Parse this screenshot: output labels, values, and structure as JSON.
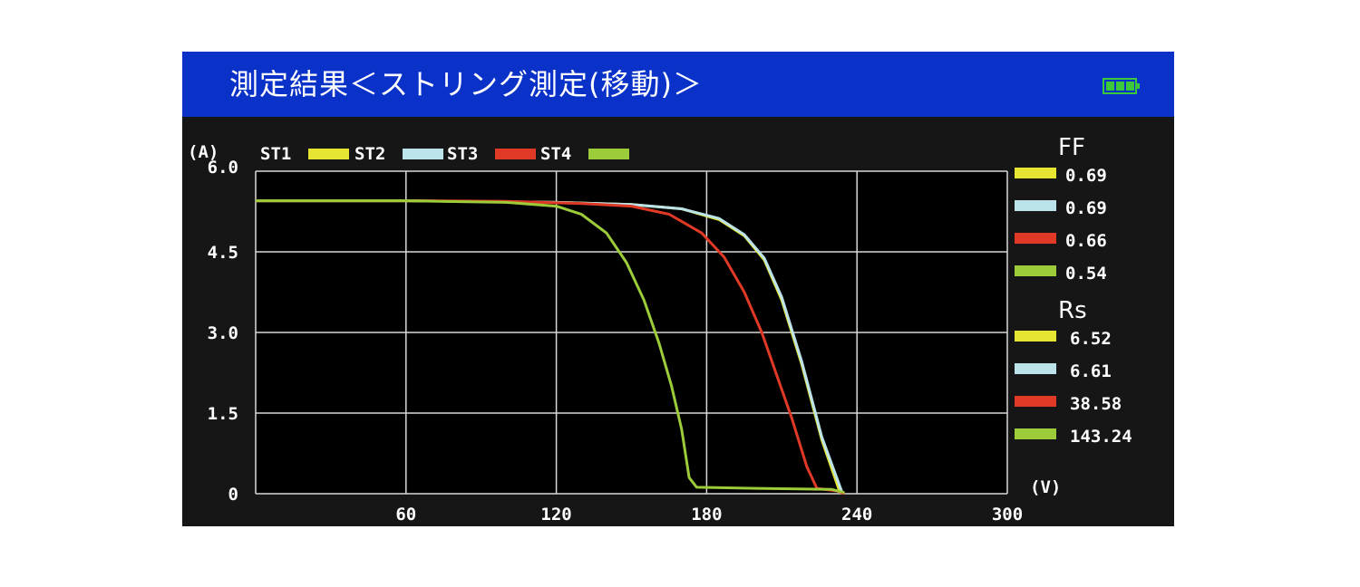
{
  "header": {
    "title": "測定結果＜ストリング測定(移動)＞",
    "battery_icon": "battery-full-icon",
    "colors": {
      "bar": "#0a32c8",
      "battery": "#3cc83c"
    }
  },
  "legend": {
    "items": [
      {
        "label": "ST1",
        "color": "#e6e632"
      },
      {
        "label": "ST2",
        "color": "#bde3ea"
      },
      {
        "label": "ST3",
        "color": "#e03a26"
      },
      {
        "label": "ST4",
        "color": "#9ccc3a"
      }
    ]
  },
  "stats": {
    "ff_label": "FF",
    "ff_values": [
      "0.69",
      "0.69",
      "0.66",
      "0.54"
    ],
    "rs_label": "Rs",
    "rs_values": [
      "6.52",
      "6.61",
      "38.58",
      "143.24"
    ]
  },
  "chart_data": {
    "type": "line",
    "ylabel": "(A)",
    "xlabel": "(V)",
    "xlim": [
      0,
      300
    ],
    "ylim": [
      0,
      6.0
    ],
    "x_ticks": [
      "60",
      "120",
      "180",
      "240",
      "300"
    ],
    "x_tick_values": [
      60,
      120,
      180,
      240,
      300
    ],
    "y_ticks": [
      "0",
      "1.5",
      "3.0",
      "4.5",
      "6.0"
    ],
    "y_tick_values": [
      0,
      1.5,
      3.0,
      4.5,
      6.0
    ],
    "grid": true,
    "series": [
      {
        "name": "ST1",
        "color": "#e6e632",
        "points": [
          [
            0,
            5.45
          ],
          [
            60,
            5.45
          ],
          [
            120,
            5.42
          ],
          [
            150,
            5.38
          ],
          [
            170,
            5.3
          ],
          [
            185,
            5.1
          ],
          [
            195,
            4.8
          ],
          [
            203,
            4.35
          ],
          [
            210,
            3.6
          ],
          [
            218,
            2.4
          ],
          [
            226,
            1.0
          ],
          [
            233,
            0.05
          ]
        ]
      },
      {
        "name": "ST2",
        "color": "#bde3ea",
        "points": [
          [
            0,
            5.45
          ],
          [
            60,
            5.45
          ],
          [
            120,
            5.42
          ],
          [
            150,
            5.38
          ],
          [
            170,
            5.3
          ],
          [
            185,
            5.12
          ],
          [
            195,
            4.82
          ],
          [
            203,
            4.38
          ],
          [
            210,
            3.65
          ],
          [
            218,
            2.45
          ],
          [
            226,
            1.05
          ],
          [
            234,
            0.03
          ]
        ]
      },
      {
        "name": "ST3",
        "color": "#e03a26",
        "points": [
          [
            0,
            5.45
          ],
          [
            60,
            5.45
          ],
          [
            100,
            5.44
          ],
          [
            130,
            5.4
          ],
          [
            150,
            5.35
          ],
          [
            165,
            5.2
          ],
          [
            178,
            4.85
          ],
          [
            187,
            4.4
          ],
          [
            195,
            3.75
          ],
          [
            202,
            3.0
          ],
          [
            208,
            2.2
          ],
          [
            214,
            1.4
          ],
          [
            220,
            0.5
          ],
          [
            224,
            0.1
          ],
          [
            232,
            0.05
          ],
          [
            235,
            0.0
          ]
        ]
      },
      {
        "name": "ST4",
        "color": "#9ccc3a",
        "points": [
          [
            0,
            5.45
          ],
          [
            60,
            5.45
          ],
          [
            100,
            5.42
          ],
          [
            120,
            5.35
          ],
          [
            130,
            5.2
          ],
          [
            140,
            4.85
          ],
          [
            148,
            4.3
          ],
          [
            155,
            3.6
          ],
          [
            161,
            2.8
          ],
          [
            166,
            2.0
          ],
          [
            170,
            1.2
          ],
          [
            173,
            0.3
          ],
          [
            176,
            0.12
          ],
          [
            200,
            0.1
          ],
          [
            230,
            0.08
          ],
          [
            235,
            0.02
          ]
        ]
      }
    ]
  }
}
